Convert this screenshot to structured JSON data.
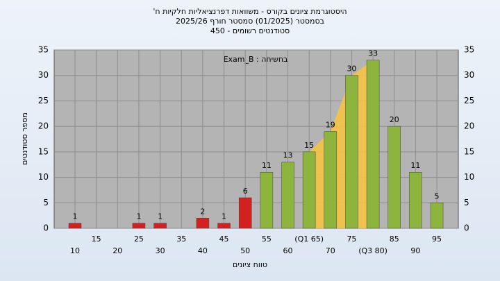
{
  "chart_data": {
    "type": "bar",
    "title": "היסטוגרמת ציונים בקורס - משוואות דפרנציאליות חלקיות ח'",
    "subtitle": "בסמסטר (01/2025) סמסטר חורף 2025/26",
    "subtitle2": "סטודנטים רשומים - 450",
    "annotation": "בחשיחה : Exam_B",
    "x_label": "טווח ציונים",
    "y_label": "מספר סטודנטים",
    "categories": [
      "10",
      "15",
      "20",
      "25",
      "30",
      "35",
      "40",
      "45",
      "50",
      "55",
      "60",
      "(Q1 65)",
      "70",
      "75",
      "(Q3 80)",
      "85",
      "90",
      "95"
    ],
    "values": [
      1,
      0,
      0,
      1,
      1,
      0,
      2,
      1,
      6,
      11,
      13,
      15,
      19,
      30,
      33,
      20,
      11,
      5
    ],
    "colors": [
      "#d42020",
      "#d42020",
      "#d42020",
      "#d42020",
      "#d42020",
      "#d42020",
      "#d42020",
      "#d42020",
      "#d42020",
      "#8db43c",
      "#8db43c",
      "#8db43c",
      "#8db43c",
      "#8db43c",
      "#8db43c",
      "#8db43c",
      "#8db43c",
      "#8db43c"
    ],
    "ylim": [
      0,
      35
    ],
    "yticks": [
      0,
      5,
      10,
      15,
      20,
      25,
      30,
      35
    ],
    "grid": true
  }
}
